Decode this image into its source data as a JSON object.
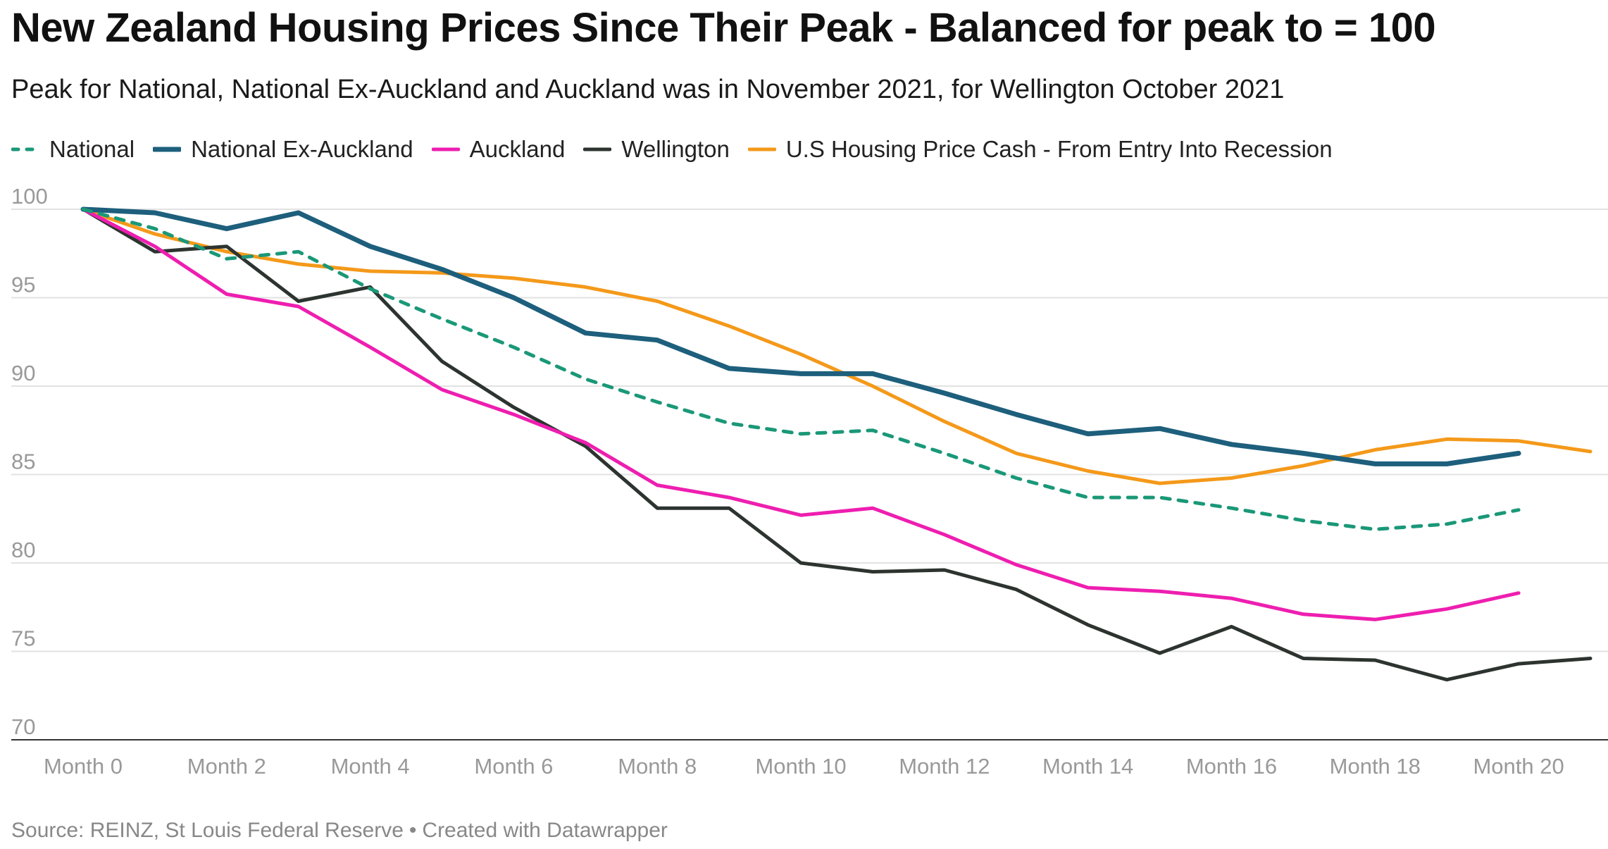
{
  "title": "New Zealand Housing Prices Since Their Peak - Balanced for peak to = 100",
  "subtitle": "Peak for National, National Ex-Auckland and Auckland was in November 2021, for Wellington October 2021",
  "footer": {
    "source": "Source: REINZ, St Louis Federal Reserve",
    "separator": "•",
    "credit": "Created with Datawrapper"
  },
  "chart_data": {
    "type": "line",
    "title": "New Zealand Housing Prices Since Their Peak - Balanced for peak to = 100",
    "subtitle": "Peak for National, National Ex-Auckland and Auckland was in November 2021, for Wellington October 2021",
    "xlabel": "",
    "ylabel": "",
    "x": [
      0,
      1,
      2,
      3,
      4,
      5,
      6,
      7,
      8,
      9,
      10,
      11,
      12,
      13,
      14,
      15,
      16,
      17,
      18,
      19,
      20,
      21
    ],
    "xticks": [
      0,
      2,
      4,
      6,
      8,
      10,
      12,
      14,
      16,
      18,
      20
    ],
    "xtick_labels": [
      "Month 0",
      "Month 2",
      "Month 4",
      "Month 6",
      "Month 8",
      "Month 10",
      "Month 12",
      "Month 14",
      "Month 16",
      "Month 18",
      "Month 20"
    ],
    "ylim": [
      70,
      100
    ],
    "yticks": [
      70,
      75,
      80,
      85,
      90,
      95,
      100
    ],
    "xlim": [
      0,
      21
    ],
    "grid": true,
    "legend_position": "top-left",
    "series": [
      {
        "name": "National",
        "color": "#1a9878",
        "style": "dashed",
        "values": [
          100,
          98.9,
          97.2,
          97.6,
          95.5,
          93.8,
          92.2,
          90.4,
          89.1,
          87.9,
          87.3,
          87.5,
          86.2,
          84.8,
          83.7,
          83.7,
          83.1,
          82.4,
          81.9,
          82.2,
          83.0,
          null
        ]
      },
      {
        "name": "National Ex-Auckland",
        "color": "#1d5f7c",
        "style": "solid-thick",
        "values": [
          100,
          99.8,
          98.9,
          99.8,
          97.9,
          96.6,
          95.0,
          93.0,
          92.6,
          91.0,
          90.7,
          90.7,
          89.6,
          88.4,
          87.3,
          87.6,
          86.7,
          86.2,
          85.6,
          85.6,
          86.2,
          null
        ]
      },
      {
        "name": "Auckland",
        "color": "#ee1eb0",
        "style": "solid",
        "values": [
          100,
          97.9,
          95.2,
          94.5,
          92.2,
          89.8,
          88.4,
          86.8,
          84.4,
          83.7,
          82.7,
          83.1,
          81.6,
          79.9,
          78.6,
          78.4,
          78.0,
          77.1,
          76.8,
          77.4,
          78.3,
          null
        ]
      },
      {
        "name": "Wellington",
        "color": "#2d3430",
        "style": "solid",
        "values": [
          100,
          97.6,
          97.9,
          94.8,
          95.6,
          91.4,
          88.8,
          86.6,
          83.1,
          83.1,
          80.0,
          79.5,
          79.6,
          78.5,
          76.5,
          74.9,
          76.4,
          74.6,
          74.5,
          73.4,
          74.3,
          74.6
        ]
      },
      {
        "name": "U.S Housing Price Cash - From Entry Into Recession",
        "color": "#f4991a",
        "style": "solid",
        "values": [
          100,
          98.6,
          97.6,
          96.9,
          96.5,
          96.4,
          96.1,
          95.6,
          94.8,
          93.4,
          91.8,
          90.0,
          88.0,
          86.2,
          85.2,
          84.5,
          84.8,
          85.5,
          86.4,
          87.0,
          86.9,
          86.3
        ]
      }
    ]
  }
}
